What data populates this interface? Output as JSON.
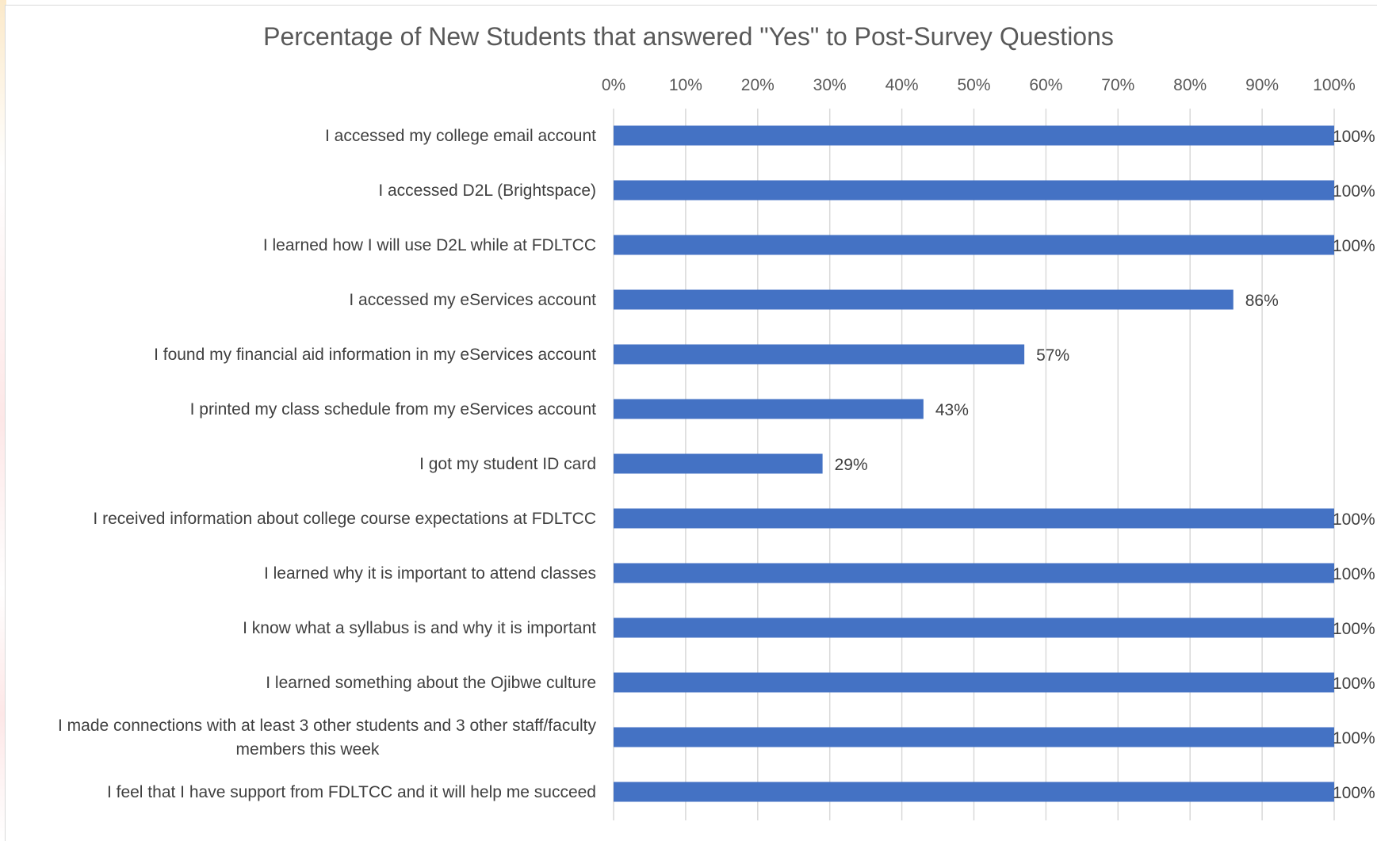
{
  "chart_data": {
    "type": "bar",
    "orientation": "horizontal",
    "title": "Percentage of New Students that answered \"Yes\" to Post-Survey Questions",
    "xlim": [
      0,
      100
    ],
    "x_ticks": [
      "0%",
      "10%",
      "20%",
      "30%",
      "40%",
      "50%",
      "60%",
      "70%",
      "80%",
      "90%",
      "100%"
    ],
    "x_axis_position": "top",
    "grid": true,
    "bar_color": "#4472C4",
    "categories": [
      "I accessed my college email account",
      "I accessed D2L (Brightspace)",
      "I learned how I will use D2L while at FDLTCC",
      "I accessed my eServices account",
      "I found my financial aid information in my eServices account",
      "I printed my class schedule from my eServices account",
      "I got my student ID card",
      "I received information about college course expectations at FDLTCC",
      "I learned why it is important to attend classes",
      "I know what a syllabus is and why it is important",
      "I learned something about the Ojibwe culture",
      "I made connections with at least 3 other students and 3 other staff/faculty members this week",
      "I feel that I have support from FDLTCC and it will help me succeed"
    ],
    "values": [
      100,
      100,
      100,
      86,
      57,
      43,
      29,
      100,
      100,
      100,
      100,
      100,
      100
    ],
    "data_labels": [
      "100%",
      "100%",
      "100%",
      "86%",
      "57%",
      "43%",
      "29%",
      "100%",
      "100%",
      "100%",
      "100%",
      "100%",
      "100%"
    ]
  }
}
